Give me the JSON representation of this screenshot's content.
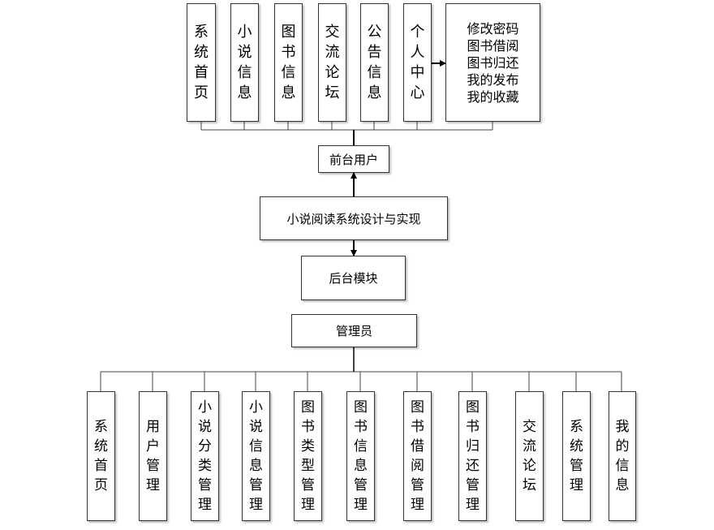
{
  "front": {
    "label": "前台用户",
    "items": [
      "系统首页",
      "小说信息",
      "图书信息",
      "交流论坛",
      "公告信息",
      "个人中心"
    ],
    "personal_center_items": "修改密码\n图书借阅\n图书归还\n我的发布\n我的收藏"
  },
  "root_label": "小说阅读系统设计与实现",
  "back": {
    "module_label": "后台模块",
    "admin_label": "管理员",
    "items": [
      "系统首页",
      "用户管理",
      "小说分类管理",
      "小说信息管理",
      "图书类型管理",
      "图书信息管理",
      "图书借阅管理",
      "图书归还管理",
      "交流论坛",
      "系统管理",
      "我的信息"
    ]
  }
}
